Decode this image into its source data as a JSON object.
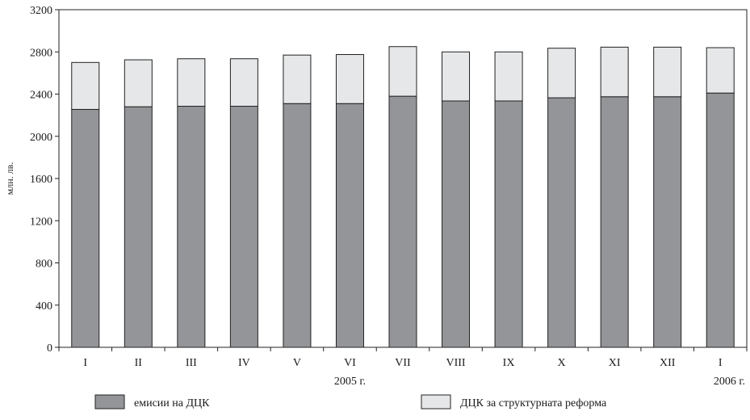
{
  "chart_data": {
    "type": "bar",
    "stacked": true,
    "title": "",
    "xlabel": "",
    "ylabel": "млн. лв.",
    "ylim": [
      0,
      3200
    ],
    "yticks": [
      0,
      400,
      800,
      1200,
      1600,
      2000,
      2400,
      2800,
      3200
    ],
    "grid": false,
    "legend_position": "bottom",
    "categories": [
      "I",
      "II",
      "III",
      "IV",
      "V",
      "VI",
      "VII",
      "VIII",
      "IX",
      "X",
      "XI",
      "XII",
      "I"
    ],
    "year_labels": [
      {
        "text": "2005 г.",
        "under_category": 5
      },
      {
        "text": "2006 г.",
        "under_category": 12
      }
    ],
    "series": [
      {
        "name": "емисии на ДЦК",
        "color": "#939598",
        "values": [
          2255,
          2280,
          2285,
          2285,
          2310,
          2310,
          2380,
          2335,
          2335,
          2365,
          2375,
          2375,
          2410
        ]
      },
      {
        "name": "ДЦК за структурната реформа",
        "color": "#e6e7e8",
        "values": [
          445,
          445,
          450,
          450,
          460,
          465,
          470,
          465,
          465,
          470,
          470,
          470,
          430
        ]
      }
    ]
  }
}
